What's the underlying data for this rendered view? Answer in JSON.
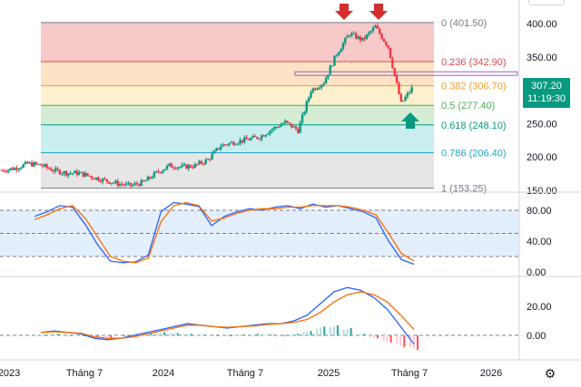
{
  "chart_data": [
    {
      "type": "candlestick",
      "panel": "price",
      "x_ticks": [
        "2023",
        "Tháng 7",
        "2024",
        "Tháng 7",
        "2025",
        "Tháng 7",
        "2026"
      ],
      "y_ticks": [
        400.0,
        350.0,
        300.0,
        250.0,
        200.0,
        150.0
      ],
      "ylim": [
        148,
        415
      ],
      "fibonacci": [
        {
          "ratio": "0",
          "price": 401.5,
          "label": "0 (401.50)",
          "color": "#787b86",
          "fill": "#f7c9c9"
        },
        {
          "ratio": "0.236",
          "price": 342.9,
          "label": "0.236 (342.90)",
          "color": "#e0484e",
          "fill": "#fde2c6"
        },
        {
          "ratio": "0.382",
          "price": 306.7,
          "label": "0.382 (306.70)",
          "color": "#f59e2a",
          "fill": "#fdf0cc"
        },
        {
          "ratio": "0.5",
          "price": 277.4,
          "label": "0.5 (277.40)",
          "color": "#4caf50",
          "fill": "#d4ecd4"
        },
        {
          "ratio": "0.618",
          "price": 248.1,
          "label": "0.618 (248.10)",
          "color": "#089981",
          "fill": "#c9eeee"
        },
        {
          "ratio": "0.786",
          "price": 206.4,
          "label": "0.786 (206.40)",
          "color": "#22a7c8",
          "fill": "#e6e6e6"
        },
        {
          "ratio": "1",
          "price": 153.25,
          "label": "1 (153.25)",
          "color": "#787b86",
          "fill": "#e6e6e6"
        }
      ],
      "last_price": "307.20",
      "countdown": "11:19:30",
      "markers": [
        {
          "type": "arrow-down",
          "color": "#d32f2f",
          "at": "first peak ~398"
        },
        {
          "type": "arrow-down",
          "color": "#d32f2f",
          "at": "second peak ~401.5"
        },
        {
          "type": "arrow-up",
          "color": "#089981",
          "at": "current low ~278"
        }
      ],
      "close_series": [
        {
          "t": "2022-12",
          "v": 180
        },
        {
          "t": "2023-01",
          "v": 183
        },
        {
          "t": "2023-02",
          "v": 190
        },
        {
          "t": "2023-03",
          "v": 188
        },
        {
          "t": "2023-04",
          "v": 180
        },
        {
          "t": "2023-05",
          "v": 176
        },
        {
          "t": "2023-06",
          "v": 176
        },
        {
          "t": "2023-07",
          "v": 170
        },
        {
          "t": "2023-08",
          "v": 165
        },
        {
          "t": "2023-09",
          "v": 160
        },
        {
          "t": "2023-10",
          "v": 157
        },
        {
          "t": "2023-11",
          "v": 162
        },
        {
          "t": "2023-12",
          "v": 176
        },
        {
          "t": "2024-01",
          "v": 187
        },
        {
          "t": "2024-02",
          "v": 185
        },
        {
          "t": "2024-03",
          "v": 187
        },
        {
          "t": "2024-04",
          "v": 196
        },
        {
          "t": "2024-05",
          "v": 217
        },
        {
          "t": "2024-06",
          "v": 222
        },
        {
          "t": "2024-07",
          "v": 226
        },
        {
          "t": "2024-08",
          "v": 230
        },
        {
          "t": "2024-09",
          "v": 242
        },
        {
          "t": "2024-10",
          "v": 252
        },
        {
          "t": "2024-11",
          "v": 240
        },
        {
          "t": "2024-12",
          "v": 300
        },
        {
          "t": "2025-01",
          "v": 312
        },
        {
          "t": "2025-02",
          "v": 355
        },
        {
          "t": "2025-03",
          "v": 385
        },
        {
          "t": "2025-04",
          "v": 375
        },
        {
          "t": "2025-05",
          "v": 395
        },
        {
          "t": "2025-06",
          "v": 365
        },
        {
          "t": "2025-07",
          "v": 280
        },
        {
          "t": "2025-07-late",
          "v": 307.2
        }
      ]
    },
    {
      "type": "line",
      "panel": "stochastic",
      "y_ticks": [
        80.0,
        40.0,
        0.0
      ],
      "ylim": [
        -5,
        95
      ],
      "bands": [
        80,
        20
      ],
      "series": [
        {
          "color": "#2962ff",
          "values": [
            72,
            78,
            86,
            84,
            62,
            35,
            14,
            12,
            13,
            22,
            78,
            90,
            88,
            85,
            60,
            72,
            78,
            82,
            80,
            84,
            86,
            82,
            88,
            84,
            86,
            82,
            78,
            70,
            40,
            16,
            10
          ]
        },
        {
          "color": "#ff6d00",
          "values": [
            68,
            74,
            82,
            86,
            70,
            45,
            20,
            14,
            12,
            18,
            65,
            86,
            90,
            86,
            66,
            70,
            76,
            80,
            82,
            82,
            84,
            84,
            86,
            86,
            86,
            84,
            80,
            74,
            50,
            24,
            14
          ]
        }
      ]
    },
    {
      "type": "line+histogram",
      "panel": "macd",
      "y_ticks": [
        20.0,
        0.0
      ],
      "ylim": [
        -12,
        36
      ],
      "series": [
        {
          "color": "#2962ff",
          "values": [
            2,
            3,
            2,
            1,
            -2,
            -3,
            -2,
            0,
            2,
            4,
            6,
            8,
            7,
            6,
            5,
            6,
            7,
            8,
            8,
            10,
            14,
            22,
            30,
            33,
            31,
            26,
            18,
            6,
            -6
          ]
        },
        {
          "color": "#ff6d00",
          "values": [
            2,
            2.5,
            2,
            1.5,
            -1,
            -2,
            -2,
            -1,
            1,
            3,
            5,
            7,
            7,
            6,
            5.5,
            6,
            6.5,
            7.5,
            8,
            9,
            11,
            16,
            23,
            28,
            30,
            28,
            23,
            14,
            4
          ]
        }
      ],
      "histogram": [
        0.5,
        1,
        0,
        -0.5,
        -1,
        -1.5,
        -0.5,
        1,
        1.5,
        2,
        1.5,
        1,
        0.5,
        0,
        -0.5,
        0.5,
        1,
        0.5,
        0,
        1,
        3,
        6,
        7,
        5,
        1,
        -2,
        -5,
        -8,
        -10
      ]
    }
  ]
}
